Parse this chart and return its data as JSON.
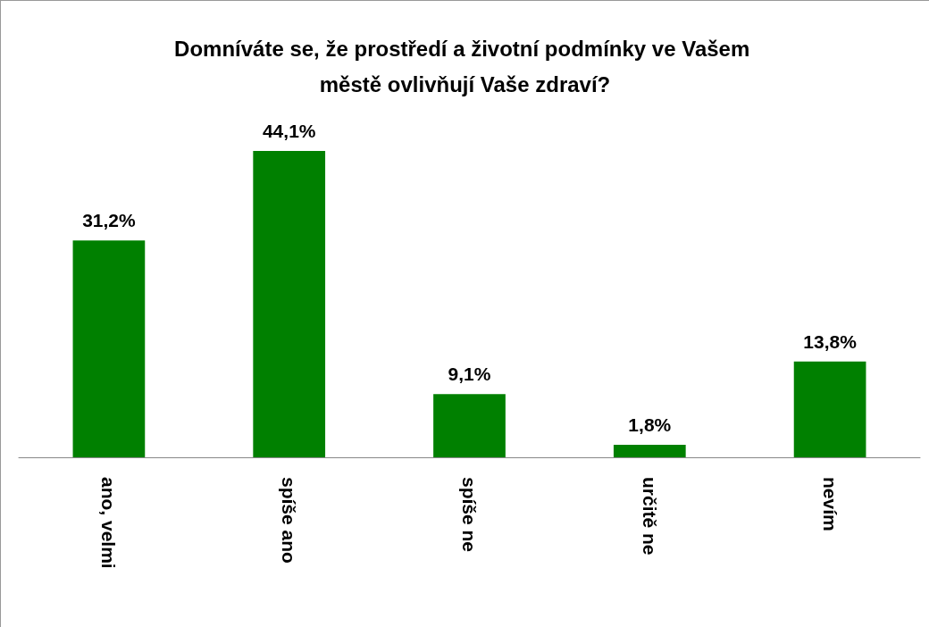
{
  "chart_data": {
    "type": "bar",
    "title": "Domníváte se, že prostředí a životní podmínky ve Vašem městě ovlivňují Vaše zdraví?",
    "categories": [
      "ano, velmi",
      "spíše ano",
      "spíše ne",
      "určitě ne",
      "nevím"
    ],
    "values": [
      31.2,
      44.1,
      9.1,
      1.8,
      13.8
    ],
    "value_labels": [
      "31,2%",
      "44,1%",
      "9,1%",
      "1,8%",
      "13,8%"
    ],
    "color": "#008000",
    "grid": false
  }
}
